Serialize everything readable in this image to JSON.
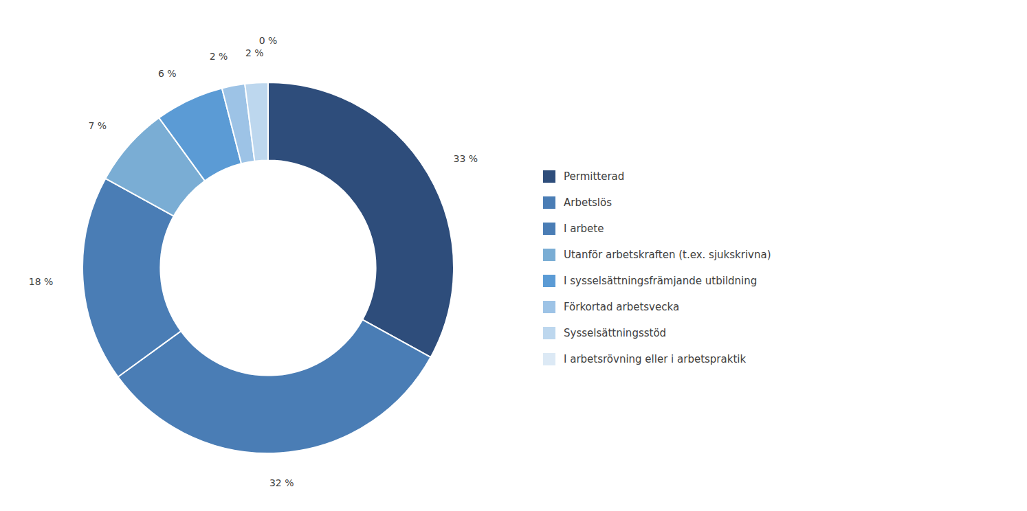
{
  "chart_data": {
    "type": "donut",
    "categories": [
      "Permitterad",
      "Arbetslös",
      "I arbete",
      "Utanför arbetskraften (t.ex. sjukskrivna)",
      "I sysselsättningsfrämjande utbildning",
      "Förkortad arbetsvecka",
      "Sysselsättningsstöd",
      "I arbetsrövning eller i arbetspraktik"
    ],
    "values": [
      33,
      32,
      18,
      7,
      6,
      2,
      2,
      0
    ],
    "value_labels": [
      "33 %",
      "32 %",
      "18 %",
      "7 %",
      "6 %",
      "2 %",
      "2 %",
      "0 %"
    ],
    "colors": [
      "#2e4d7b",
      "#4a7db5",
      "#4a7db5",
      "#7aadd4",
      "#5b9bd5",
      "#9dc3e6",
      "#bdd7ee",
      "#dce9f5"
    ],
    "data_labels": true,
    "legend": "right"
  }
}
